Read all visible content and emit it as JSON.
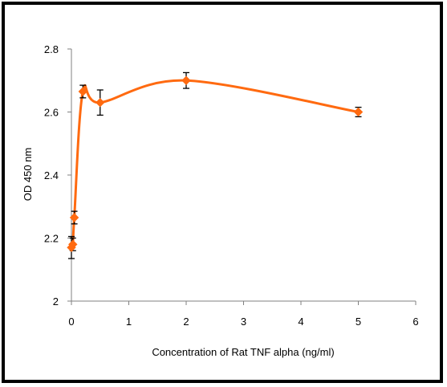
{
  "colors": {
    "frame": "#000000",
    "series": "#ff6a10",
    "error_bar": "#000000",
    "background": "#ffffff"
  },
  "chart_data": {
    "type": "scatter",
    "title": "",
    "xlabel": "Concentration of Rat TNF alpha (ng/ml)",
    "ylabel": "OD 450 nm",
    "xlim": [
      0,
      6
    ],
    "ylim": [
      2,
      2.8
    ],
    "x_ticks": [
      "0",
      "1",
      "2",
      "3",
      "4",
      "5",
      "6"
    ],
    "y_ticks": [
      "2",
      "2.2",
      "2.4",
      "2.6",
      "2.8"
    ],
    "grid": false,
    "legend": "none",
    "line_style": "smoothed",
    "marker": "diamond",
    "series": [
      {
        "x": [
          0,
          0.025,
          0.05,
          0.2,
          0.5,
          2,
          5
        ],
        "y": [
          2.17,
          2.18,
          2.265,
          2.665,
          2.63,
          2.7,
          2.6
        ],
        "error": [
          0.035,
          0.02,
          0.02,
          0.02,
          0.04,
          0.025,
          0.015
        ]
      }
    ]
  }
}
